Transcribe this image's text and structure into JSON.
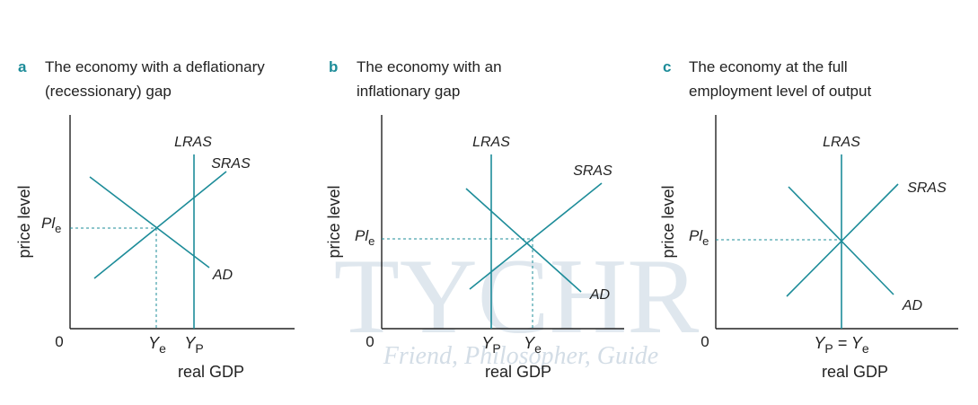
{
  "watermark": {
    "brand": "TYCHR",
    "motto": "Friend, Philosopher, Guide"
  },
  "panels": [
    {
      "letter": "a",
      "title_lines": [
        "The economy with a deflationary",
        "(recessionary) gap"
      ],
      "y_axis_label": "price level",
      "origin": "0",
      "x_axis_label": "real GDP",
      "curves": {
        "lras": "LRAS",
        "sras": "SRAS",
        "ad": "AD"
      },
      "price_label": [
        {
          "main": "Pl",
          "sub": "e"
        }
      ],
      "x_labels": [
        [
          {
            "main": "Y",
            "sub": "e"
          }
        ],
        [
          {
            "main": "Y",
            "sub": "P"
          }
        ]
      ]
    },
    {
      "letter": "b",
      "title_lines": [
        "The economy with an",
        "inflationary gap"
      ],
      "y_axis_label": "price level",
      "origin": "0",
      "x_axis_label": "real GDP",
      "curves": {
        "lras": "LRAS",
        "sras": "SRAS",
        "ad": "AD"
      },
      "price_label": [
        {
          "main": "Pl",
          "sub": "e"
        }
      ],
      "x_labels": [
        [
          {
            "main": "Y",
            "sub": "P"
          }
        ],
        [
          {
            "main": "Y",
            "sub": "e"
          }
        ]
      ]
    },
    {
      "letter": "c",
      "title_lines": [
        "The economy at the full",
        "employment level of output"
      ],
      "y_axis_label": "price level",
      "origin": "0",
      "x_axis_label": "real GDP",
      "curves": {
        "lras": "LRAS",
        "sras": "SRAS",
        "ad": "AD"
      },
      "price_label": [
        {
          "main": "Pl",
          "sub": "e"
        }
      ],
      "x_labels": [
        [
          {
            "main": "Y",
            "sub": "P"
          },
          {
            "main": " = Y",
            "sub": "e"
          }
        ]
      ]
    }
  ]
}
